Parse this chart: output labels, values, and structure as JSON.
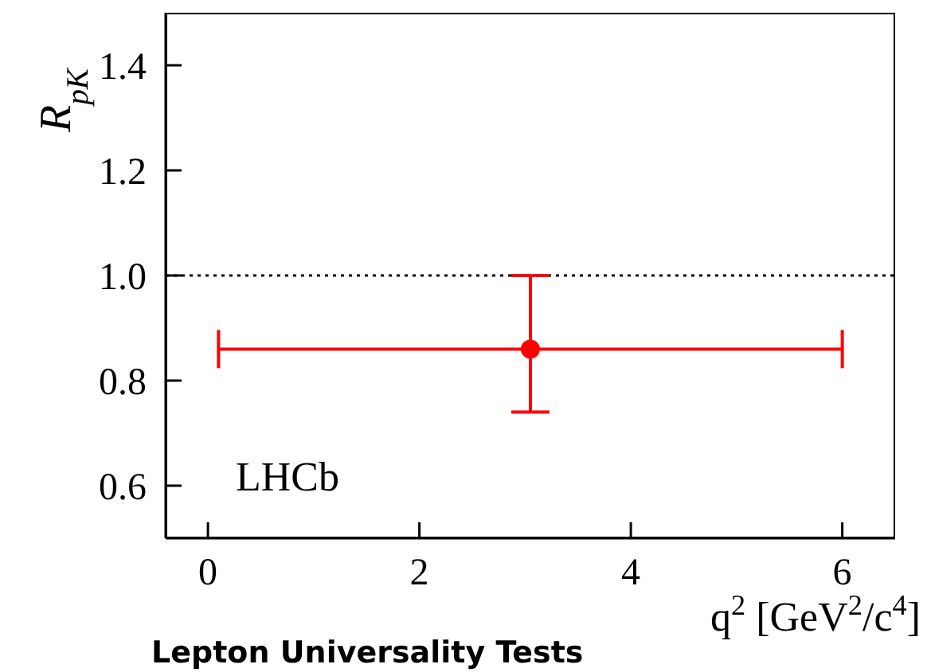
{
  "chart_data": {
    "type": "scatter",
    "xlabel": "q$^{2}$ [GeV$^{2}$/c$^{4}$]",
    "ylabel": "R$_{pK}$",
    "x": [
      3.05
    ],
    "series": [
      {
        "color": "#ff0000",
        "values": [
          0.86
        ],
        "errors": [
          [
            0.74,
            1.0
          ]
        ],
        "xerrors": [
          [
            0.1,
            6.0
          ]
        ]
      }
    ],
    "xlim": [
      -0.4,
      6.5
    ],
    "xticks": [
      0,
      2,
      4,
      6
    ],
    "ylim": [
      0.5,
      1.5
    ],
    "yticks": [
      0.6,
      0.8,
      {
        "value": 1.0,
        "label": "1.0"
      },
      1.2,
      1.4
    ],
    "ref_lines": [
      {
        "axis": "y",
        "value": 1.0,
        "color": "#000000",
        "line_style": "dotted"
      }
    ],
    "annotations": [
      "LHCb",
      "Lepton Universality Tests"
    ],
    "marker": "circle",
    "grid": false,
    "legend": false
  }
}
